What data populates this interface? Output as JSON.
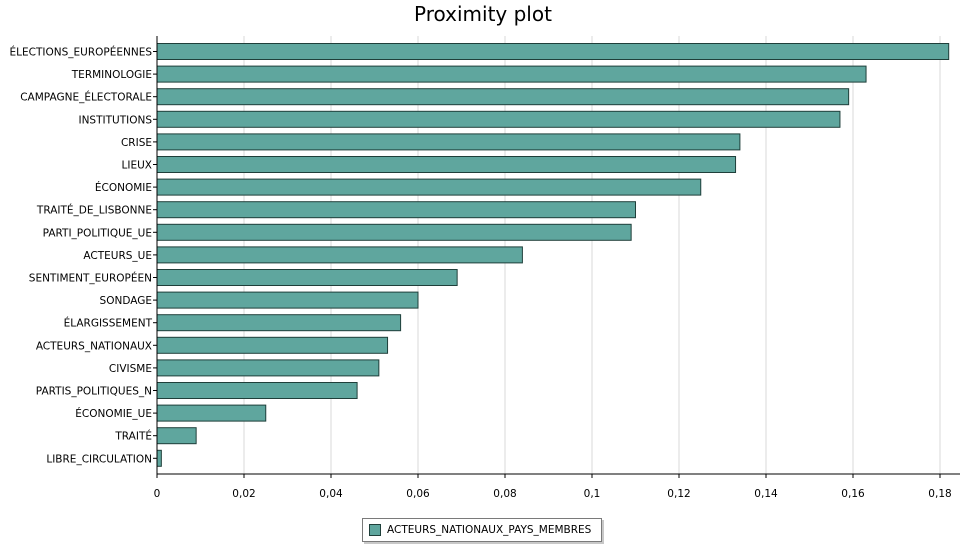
{
  "chart_data": {
    "type": "bar",
    "orientation": "horizontal",
    "title": "Proximity plot",
    "categories": [
      "ÉLECTIONS_EUROPÉENNES",
      "TERMINOLOGIE",
      "CAMPAGNE_ÉLECTORALE",
      "INSTITUTIONS",
      "CRISE",
      "LIEUX",
      "ÉCONOMIE",
      "TRAITÉ_DE_LISBONNE",
      "PARTI_POLITIQUE_UE",
      "ACTEURS_UE",
      "SENTIMENT_EUROPÉEN",
      "SONDAGE",
      "ÉLARGISSEMENT",
      "ACTEURS_NATIONAUX",
      "CIVISME",
      "PARTIS_POLITIQUES_N",
      "ÉCONOMIE_UE",
      "TRAITÉ",
      "LIBRE_CIRCULATION"
    ],
    "series": [
      {
        "name": "ACTEURS_NATIONAUX_PAYS_MEMBRES",
        "values": [
          0.182,
          0.163,
          0.159,
          0.157,
          0.134,
          0.133,
          0.125,
          0.11,
          0.109,
          0.084,
          0.069,
          0.06,
          0.056,
          0.053,
          0.051,
          0.046,
          0.025,
          0.009,
          0.001
        ]
      }
    ],
    "xlim": [
      0,
      0.18
    ],
    "xticks": [
      0,
      0.02,
      0.04,
      0.06,
      0.08,
      0.1,
      0.12,
      0.14,
      0.16,
      0.18
    ],
    "xtick_labels": [
      "0",
      "0,02",
      "0,04",
      "0,06",
      "0,08",
      "0,1",
      "0,12",
      "0,14",
      "0,16",
      "0,18"
    ],
    "grid": "vertical",
    "legend_position": "bottom",
    "bar_color": "#5fa69e",
    "bar_edge_color": "#1f3f3a"
  }
}
